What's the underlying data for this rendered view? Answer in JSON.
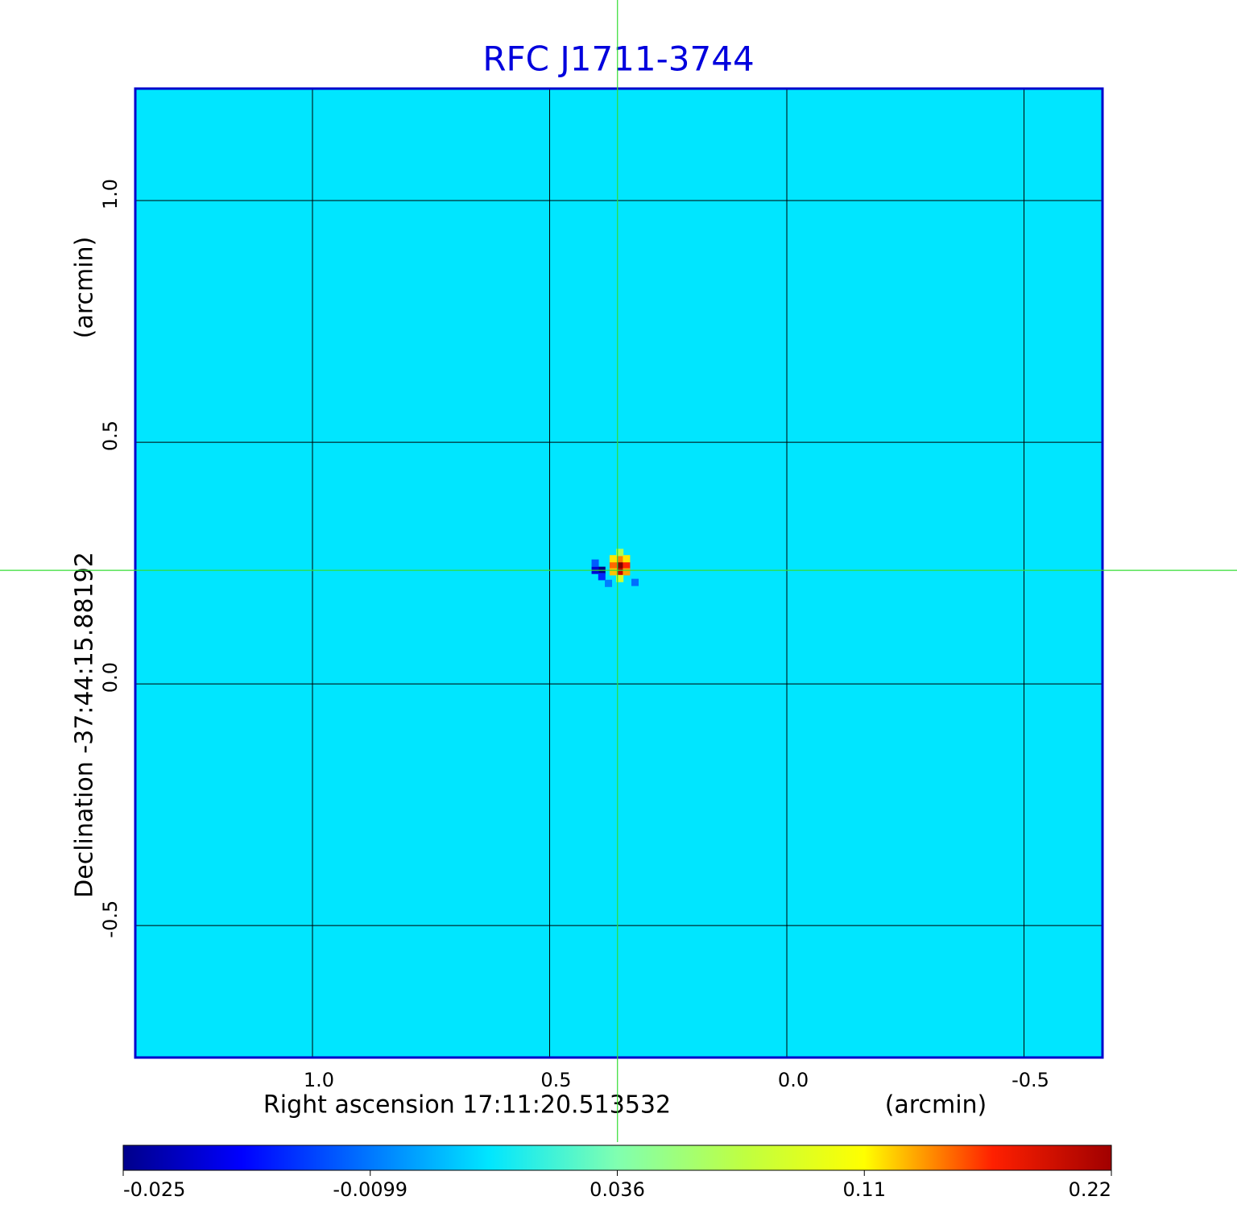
{
  "chart_data": {
    "type": "image",
    "title": "RFC J1711-3744",
    "xlabel": "Right ascension  17:11:20.513532",
    "xunit": "(arcmin)",
    "ylabel": "Declination  -37:44:15.88192",
    "yunit": "(arcmin)",
    "xlim": [
      1.3735,
      -0.6655
    ],
    "ylim": [
      -0.773,
      1.2317
    ],
    "xticks": [
      {
        "value": 1,
        "label": "1.0"
      },
      0.5,
      {
        "value": 0,
        "label": "0.0"
      },
      -0.5
    ],
    "yticks": [
      {
        "value": 1,
        "label": "1.0"
      },
      0.5,
      {
        "value": 0,
        "label": "0.0"
      },
      -0.5
    ],
    "grid": true,
    "crosshair": {
      "x": 0.357,
      "y": 0.235,
      "color": "#33dd33"
    },
    "colorbar_ticks": [
      -0.025,
      -0.0099,
      0.036,
      0.11,
      0.22
    ],
    "pixels": {
      "x": [
        0.352,
        0.352,
        0.338,
        0.366,
        0.352,
        0.338,
        0.366,
        0.352,
        0.338,
        0.366,
        0.352,
        0.39,
        0.404,
        0.39,
        0.404,
        0.376,
        0.32
      ],
      "y": [
        0.245,
        0.232,
        0.245,
        0.245,
        0.259,
        0.259,
        0.259,
        0.272,
        0.232,
        0.232,
        0.218,
        0.235,
        0.235,
        0.222,
        0.25,
        0.208,
        0.21
      ],
      "values": [
        0.22,
        0.19,
        0.15,
        0.12,
        0.11,
        0.08,
        0.08,
        0.05,
        0.1,
        0.09,
        0.06,
        -0.025,
        -0.02,
        -0.015,
        -0.012,
        -0.01,
        -0.011
      ]
    }
  }
}
